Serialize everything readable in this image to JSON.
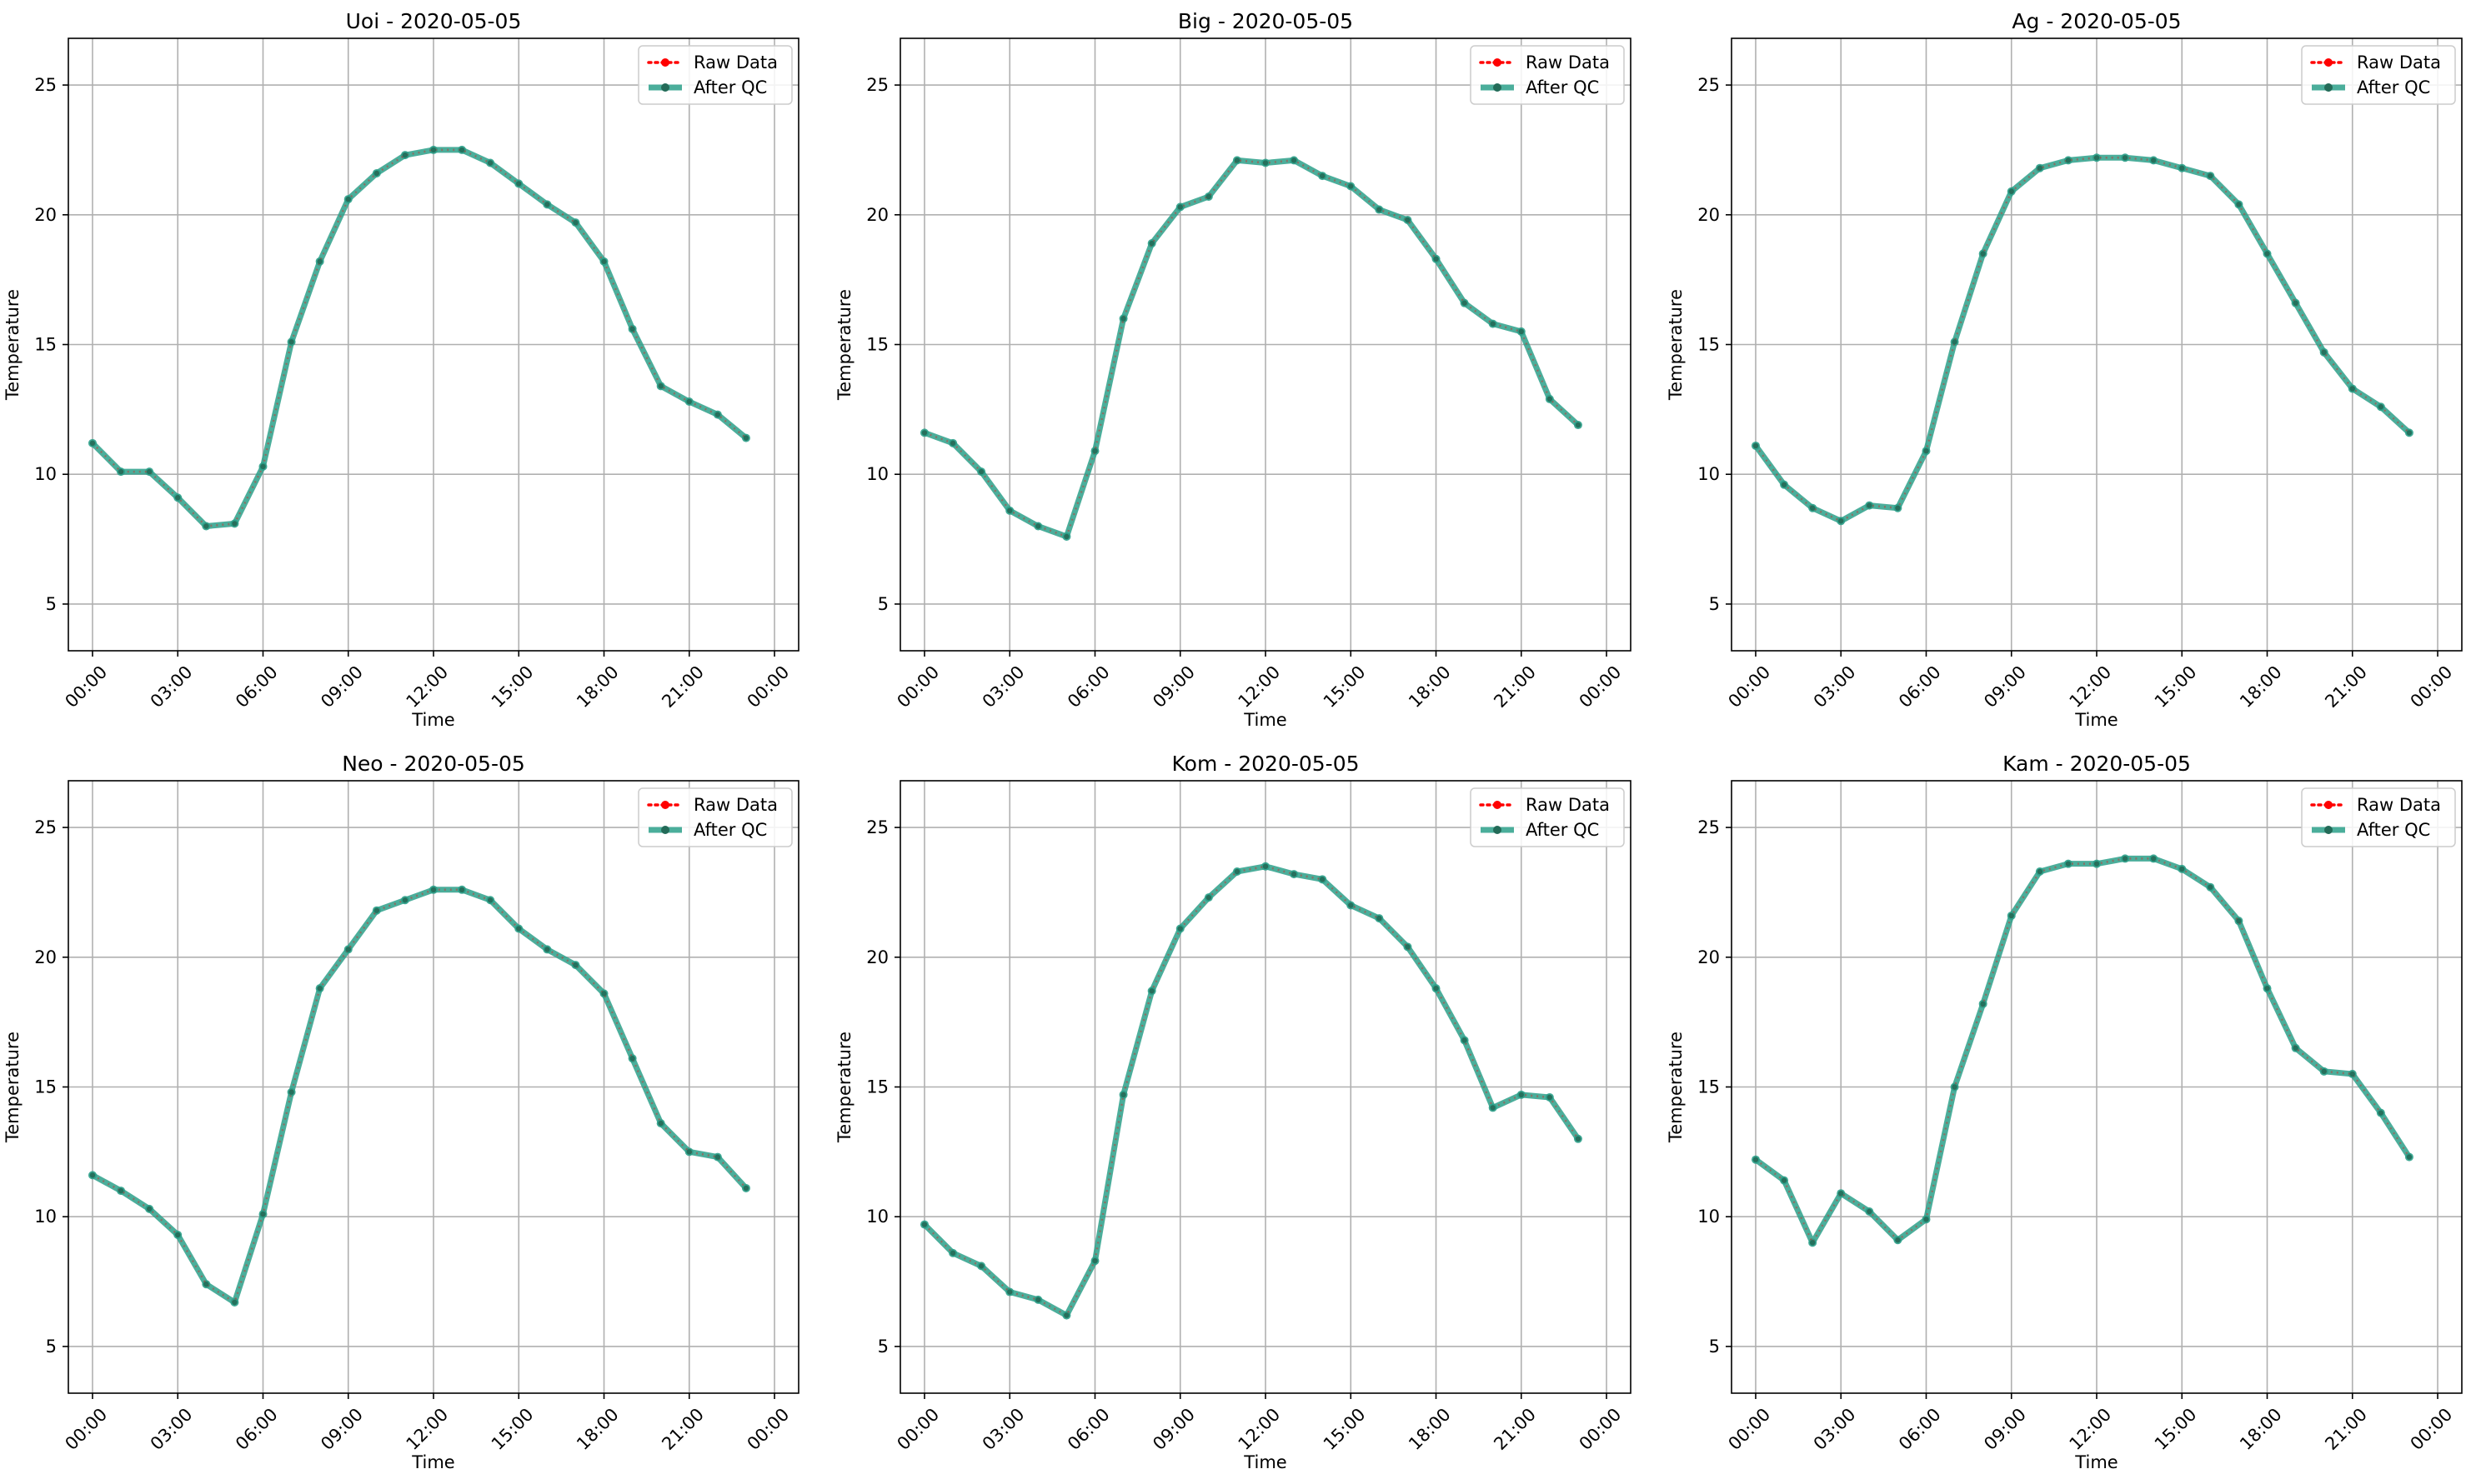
{
  "chart_data": [
    {
      "type": "line",
      "title": "Uoi - 2020-05-05",
      "xlabel": "Time",
      "ylabel": "Temperature",
      "x": [
        "00:00",
        "01:00",
        "02:00",
        "03:00",
        "04:00",
        "05:00",
        "06:00",
        "07:00",
        "08:00",
        "09:00",
        "10:00",
        "11:00",
        "12:00",
        "13:00",
        "14:00",
        "15:00",
        "16:00",
        "17:00",
        "18:00",
        "19:00",
        "20:00",
        "21:00",
        "22:00",
        "23:00"
      ],
      "x_ticks": [
        "00:00",
        "03:00",
        "06:00",
        "09:00",
        "12:00",
        "15:00",
        "18:00",
        "21:00",
        "00:00"
      ],
      "y_ticks": [
        5,
        10,
        15,
        20,
        25
      ],
      "ylim": [
        3.2,
        26.8
      ],
      "grid": true,
      "legend_position": "top-right",
      "series": [
        {
          "name": "Raw Data",
          "color": "#ff0000",
          "style": "dotted",
          "values": [
            11.2,
            10.1,
            10.1,
            9.1,
            8.0,
            8.1,
            10.3,
            15.1,
            18.2,
            20.6,
            21.6,
            22.3,
            22.5,
            22.5,
            22.0,
            21.2,
            20.4,
            19.7,
            18.2,
            15.6,
            13.4,
            12.8,
            12.3,
            11.4
          ]
        },
        {
          "name": "After QC",
          "color": "#2ca089",
          "style": "solid",
          "values": [
            11.2,
            10.1,
            10.1,
            9.1,
            8.0,
            8.1,
            10.3,
            15.1,
            18.2,
            20.6,
            21.6,
            22.3,
            22.5,
            22.5,
            22.0,
            21.2,
            20.4,
            19.7,
            18.2,
            15.6,
            13.4,
            12.8,
            12.3,
            11.4
          ]
        }
      ]
    },
    {
      "type": "line",
      "title": "Big - 2020-05-05",
      "xlabel": "Time",
      "ylabel": "Temperature",
      "x": [
        "00:00",
        "01:00",
        "02:00",
        "03:00",
        "04:00",
        "05:00",
        "06:00",
        "07:00",
        "08:00",
        "09:00",
        "10:00",
        "11:00",
        "12:00",
        "13:00",
        "14:00",
        "15:00",
        "16:00",
        "17:00",
        "18:00",
        "19:00",
        "20:00",
        "21:00",
        "22:00",
        "23:00"
      ],
      "x_ticks": [
        "00:00",
        "03:00",
        "06:00",
        "09:00",
        "12:00",
        "15:00",
        "18:00",
        "21:00",
        "00:00"
      ],
      "y_ticks": [
        5,
        10,
        15,
        20,
        25
      ],
      "ylim": [
        3.2,
        26.8
      ],
      "grid": true,
      "legend_position": "top-right",
      "series": [
        {
          "name": "Raw Data",
          "color": "#ff0000",
          "style": "dotted",
          "values": [
            11.6,
            11.2,
            10.1,
            8.6,
            8.0,
            7.6,
            10.9,
            16.0,
            18.9,
            20.3,
            20.7,
            22.1,
            22.0,
            22.1,
            21.5,
            21.1,
            20.2,
            19.8,
            18.3,
            16.6,
            15.8,
            15.5,
            12.9,
            11.9
          ]
        },
        {
          "name": "After QC",
          "color": "#2ca089",
          "style": "solid",
          "values": [
            11.6,
            11.2,
            10.1,
            8.6,
            8.0,
            7.6,
            10.9,
            16.0,
            18.9,
            20.3,
            20.7,
            22.1,
            22.0,
            22.1,
            21.5,
            21.1,
            20.2,
            19.8,
            18.3,
            16.6,
            15.8,
            15.5,
            12.9,
            11.9
          ]
        }
      ]
    },
    {
      "type": "line",
      "title": "Ag - 2020-05-05",
      "xlabel": "Time",
      "ylabel": "Temperature",
      "x": [
        "00:00",
        "01:00",
        "02:00",
        "03:00",
        "04:00",
        "05:00",
        "06:00",
        "07:00",
        "08:00",
        "09:00",
        "10:00",
        "11:00",
        "12:00",
        "13:00",
        "14:00",
        "15:00",
        "16:00",
        "17:00",
        "18:00",
        "19:00",
        "20:00",
        "21:00",
        "22:00",
        "23:00"
      ],
      "x_ticks": [
        "00:00",
        "03:00",
        "06:00",
        "09:00",
        "12:00",
        "15:00",
        "18:00",
        "21:00",
        "00:00"
      ],
      "y_ticks": [
        5,
        10,
        15,
        20,
        25
      ],
      "ylim": [
        3.2,
        26.8
      ],
      "grid": true,
      "legend_position": "top-right",
      "series": [
        {
          "name": "Raw Data",
          "color": "#ff0000",
          "style": "dotted",
          "values": [
            11.1,
            9.6,
            8.7,
            8.2,
            8.8,
            8.7,
            10.9,
            15.1,
            18.5,
            20.9,
            21.8,
            22.1,
            22.2,
            22.2,
            22.1,
            21.8,
            21.5,
            20.4,
            18.5,
            16.6,
            14.7,
            13.3,
            12.6,
            11.6
          ]
        },
        {
          "name": "After QC",
          "color": "#2ca089",
          "style": "solid",
          "values": [
            11.1,
            9.6,
            8.7,
            8.2,
            8.8,
            8.7,
            10.9,
            15.1,
            18.5,
            20.9,
            21.8,
            22.1,
            22.2,
            22.2,
            22.1,
            21.8,
            21.5,
            20.4,
            18.5,
            16.6,
            14.7,
            13.3,
            12.6,
            11.6
          ]
        }
      ]
    },
    {
      "type": "line",
      "title": "Neo - 2020-05-05",
      "xlabel": "Time",
      "ylabel": "Temperature",
      "x": [
        "00:00",
        "01:00",
        "02:00",
        "03:00",
        "04:00",
        "05:00",
        "06:00",
        "07:00",
        "08:00",
        "09:00",
        "10:00",
        "11:00",
        "12:00",
        "13:00",
        "14:00",
        "15:00",
        "16:00",
        "17:00",
        "18:00",
        "19:00",
        "20:00",
        "21:00",
        "22:00",
        "23:00"
      ],
      "x_ticks": [
        "00:00",
        "03:00",
        "06:00",
        "09:00",
        "12:00",
        "15:00",
        "18:00",
        "21:00",
        "00:00"
      ],
      "y_ticks": [
        5,
        10,
        15,
        20,
        25
      ],
      "ylim": [
        3.2,
        26.8
      ],
      "grid": true,
      "legend_position": "top-right",
      "series": [
        {
          "name": "Raw Data",
          "color": "#ff0000",
          "style": "dotted",
          "values": [
            11.6,
            11.0,
            10.3,
            9.3,
            7.4,
            6.7,
            10.1,
            14.8,
            18.8,
            20.3,
            21.8,
            22.2,
            22.6,
            22.6,
            22.2,
            21.1,
            20.3,
            19.7,
            18.6,
            16.1,
            13.6,
            12.5,
            12.3,
            11.1
          ]
        },
        {
          "name": "After QC",
          "color": "#2ca089",
          "style": "solid",
          "values": [
            11.6,
            11.0,
            10.3,
            9.3,
            7.4,
            6.7,
            10.1,
            14.8,
            18.8,
            20.3,
            21.8,
            22.2,
            22.6,
            22.6,
            22.2,
            21.1,
            20.3,
            19.7,
            18.6,
            16.1,
            13.6,
            12.5,
            12.3,
            11.1
          ]
        }
      ]
    },
    {
      "type": "line",
      "title": "Kom - 2020-05-05",
      "xlabel": "Time",
      "ylabel": "Temperature",
      "x": [
        "00:00",
        "01:00",
        "02:00",
        "03:00",
        "04:00",
        "05:00",
        "06:00",
        "07:00",
        "08:00",
        "09:00",
        "10:00",
        "11:00",
        "12:00",
        "13:00",
        "14:00",
        "15:00",
        "16:00",
        "17:00",
        "18:00",
        "19:00",
        "20:00",
        "21:00",
        "22:00",
        "23:00"
      ],
      "x_ticks": [
        "00:00",
        "03:00",
        "06:00",
        "09:00",
        "12:00",
        "15:00",
        "18:00",
        "21:00",
        "00:00"
      ],
      "y_ticks": [
        5,
        10,
        15,
        20,
        25
      ],
      "ylim": [
        3.2,
        26.8
      ],
      "grid": true,
      "legend_position": "top-right",
      "series": [
        {
          "name": "Raw Data",
          "color": "#ff0000",
          "style": "dotted",
          "values": [
            9.7,
            8.6,
            8.1,
            7.1,
            6.8,
            6.2,
            8.3,
            14.7,
            18.7,
            21.1,
            22.3,
            23.3,
            23.5,
            23.2,
            23.0,
            22.0,
            21.5,
            20.4,
            18.8,
            16.8,
            14.2,
            14.7,
            14.6,
            13.0
          ]
        },
        {
          "name": "After QC",
          "color": "#2ca089",
          "style": "solid",
          "values": [
            9.7,
            8.6,
            8.1,
            7.1,
            6.8,
            6.2,
            8.3,
            14.7,
            18.7,
            21.1,
            22.3,
            23.3,
            23.5,
            23.2,
            23.0,
            22.0,
            21.5,
            20.4,
            18.8,
            16.8,
            14.2,
            14.7,
            14.6,
            13.0
          ]
        }
      ]
    },
    {
      "type": "line",
      "title": "Kam - 2020-05-05",
      "xlabel": "Time",
      "ylabel": "Temperature",
      "x": [
        "00:00",
        "01:00",
        "02:00",
        "03:00",
        "04:00",
        "05:00",
        "06:00",
        "07:00",
        "08:00",
        "09:00",
        "10:00",
        "11:00",
        "12:00",
        "13:00",
        "14:00",
        "15:00",
        "16:00",
        "17:00",
        "18:00",
        "19:00",
        "20:00",
        "21:00",
        "22:00",
        "23:00"
      ],
      "x_ticks": [
        "00:00",
        "03:00",
        "06:00",
        "09:00",
        "12:00",
        "15:00",
        "18:00",
        "21:00",
        "00:00"
      ],
      "y_ticks": [
        5,
        10,
        15,
        20,
        25
      ],
      "ylim": [
        3.2,
        26.8
      ],
      "grid": true,
      "legend_position": "top-right",
      "series": [
        {
          "name": "Raw Data",
          "color": "#ff0000",
          "style": "dotted",
          "values": [
            12.2,
            11.4,
            9.0,
            10.9,
            10.2,
            9.1,
            9.9,
            15.0,
            18.2,
            21.6,
            23.3,
            23.6,
            23.6,
            23.8,
            23.8,
            23.4,
            22.7,
            21.4,
            18.8,
            16.5,
            15.6,
            15.5,
            14.0,
            12.3
          ]
        },
        {
          "name": "After QC",
          "color": "#2ca089",
          "style": "solid",
          "values": [
            12.2,
            11.4,
            9.0,
            10.9,
            10.2,
            9.1,
            9.9,
            15.0,
            18.2,
            21.6,
            23.3,
            23.6,
            23.6,
            23.8,
            23.8,
            23.4,
            22.7,
            21.4,
            18.8,
            16.5,
            15.6,
            15.5,
            14.0,
            12.3
          ]
        }
      ]
    }
  ]
}
